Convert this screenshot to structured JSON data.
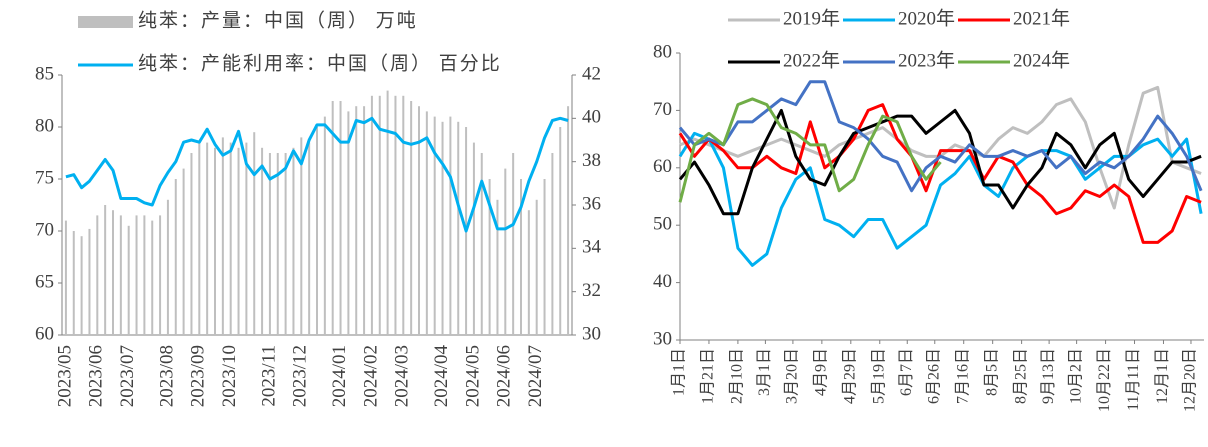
{
  "chart_data": [
    {
      "type": "combo",
      "categories": [
        "2023/05",
        null,
        null,
        null,
        "2023/06",
        null,
        null,
        null,
        "2023/07",
        null,
        null,
        null,
        null,
        "2023/08",
        null,
        null,
        null,
        "2023/09",
        null,
        null,
        null,
        "2023/10",
        null,
        null,
        null,
        null,
        "2023/11",
        null,
        null,
        null,
        "2023/12",
        null,
        null,
        null,
        null,
        "2024/01",
        null,
        null,
        null,
        "2024/02",
        null,
        null,
        null,
        "2024/03",
        null,
        null,
        null,
        null,
        "2024/04",
        null,
        null,
        null,
        "2024/05",
        null,
        null,
        null,
        "2024/06",
        null,
        null,
        null,
        "2024/07",
        null,
        null,
        null,
        null
      ],
      "series": [
        {
          "name": "纯苯：产量：中国（周） 万吨",
          "color": "#bfbfbf",
          "type": "bar",
          "values": [
            71,
            70,
            69.5,
            70.2,
            71.5,
            72.5,
            72,
            71.5,
            70.5,
            71.5,
            71.5,
            71,
            71.5,
            73,
            75,
            76,
            77.5,
            78.5,
            78.5,
            78,
            79,
            78.5,
            78,
            78.5,
            79.5,
            78,
            77.5,
            77.5,
            77.5,
            78,
            79,
            78.5,
            80,
            81,
            82.5,
            82.5,
            81.5,
            82,
            82,
            83,
            83,
            83.5,
            83,
            83,
            82.5,
            82,
            81.5,
            81,
            80.5,
            81,
            80.5,
            80,
            78.5,
            77.5,
            75,
            73,
            76,
            77.5,
            75,
            72,
            73,
            75,
            77.5,
            80,
            82
          ]
        },
        {
          "name": "纯苯：产能利用率：中国（周） 百分比",
          "color": "#00b0f0",
          "type": "line",
          "axis": "y2",
          "values": [
            37.3,
            37.4,
            36.8,
            37.1,
            37.6,
            38.1,
            37.6,
            36.3,
            36.3,
            36.3,
            36.1,
            36.0,
            36.9,
            37.5,
            38.0,
            38.9,
            39.0,
            38.9,
            39.5,
            38.8,
            38.3,
            38.5,
            39.4,
            37.9,
            37.4,
            37.8,
            37.2,
            37.4,
            37.7,
            38.5,
            37.9,
            39.0,
            39.7,
            39.7,
            39.3,
            38.9,
            38.9,
            39.9,
            39.8,
            40.0,
            39.5,
            39.4,
            39.3,
            38.9,
            38.8,
            38.9,
            39.1,
            38.4,
            37.9,
            37.3,
            36.0,
            34.8,
            35.9,
            37.1,
            36.0,
            34.9,
            34.9,
            35.1,
            35.9,
            37.1,
            38.0,
            39.1,
            39.9,
            40.0,
            39.9
          ]
        }
      ],
      "ylim": [
        60,
        85
      ],
      "yticks": [
        60,
        65,
        70,
        75,
        80,
        85
      ],
      "y2lim": [
        30,
        42
      ],
      "y2ticks": [
        30,
        32,
        34,
        36,
        38,
        40,
        42
      ]
    },
    {
      "type": "line",
      "x": [
        0,
        10,
        20,
        30,
        40,
        50,
        60,
        70,
        80,
        90,
        100,
        110,
        120,
        130,
        140,
        150,
        160,
        170,
        180,
        190,
        200,
        210,
        220,
        230,
        240,
        250,
        260,
        270,
        280,
        290,
        300,
        310,
        320,
        330,
        340,
        350,
        360
      ],
      "xlim": [
        0,
        362
      ],
      "xticks": [
        {
          "value": 0,
          "label": "1月1日"
        },
        {
          "value": 20,
          "label": "1月21日"
        },
        {
          "value": 40,
          "label": "2月10日"
        },
        {
          "value": 59,
          "label": "3月1日"
        },
        {
          "value": 78,
          "label": "3月20日"
        },
        {
          "value": 98,
          "label": "4月9日"
        },
        {
          "value": 118,
          "label": "4月29日"
        },
        {
          "value": 138,
          "label": "5月19日"
        },
        {
          "value": 157,
          "label": "6月7日"
        },
        {
          "value": 176,
          "label": "6月26日"
        },
        {
          "value": 196,
          "label": "7月16日"
        },
        {
          "value": 216,
          "label": "8月5日"
        },
        {
          "value": 236,
          "label": "8月25日"
        },
        {
          "value": 255,
          "label": "9月13日"
        },
        {
          "value": 274,
          "label": "10月2日"
        },
        {
          "value": 294,
          "label": "10月22日"
        },
        {
          "value": 314,
          "label": "11月11日"
        },
        {
          "value": 334,
          "label": "12月1日"
        },
        {
          "value": 353,
          "label": "12月20日"
        }
      ],
      "ylim": [
        30,
        80
      ],
      "yticks": [
        30,
        40,
        50,
        60,
        70,
        80
      ],
      "series": [
        {
          "name": "2019年",
          "color": "#bfbfbf",
          "values": [
            64,
            65,
            64,
            63,
            62,
            63,
            64,
            65,
            64,
            63,
            62,
            64,
            65,
            66,
            67,
            65,
            63,
            62,
            62,
            64,
            63,
            62,
            65,
            67,
            66,
            68,
            71,
            72,
            68,
            60,
            53,
            64,
            73,
            74,
            61,
            60,
            59
          ]
        },
        {
          "name": "2020年",
          "color": "#00b0f0",
          "values": [
            62,
            66,
            65,
            60,
            46,
            43,
            45,
            53,
            58,
            60,
            51,
            50,
            48,
            51,
            51,
            46,
            48,
            50,
            57,
            59,
            62,
            57,
            55,
            60,
            62,
            63,
            63,
            62,
            58,
            60,
            62,
            62,
            64,
            65,
            62,
            65,
            52
          ]
        },
        {
          "name": "2021年",
          "color": "#ff0000",
          "values": [
            66,
            62,
            65,
            63,
            60,
            60,
            62,
            60,
            59,
            68,
            60,
            62,
            65,
            70,
            71,
            65,
            62,
            56,
            63,
            63,
            63,
            58,
            62,
            61,
            57,
            55,
            52,
            53,
            56,
            55,
            57,
            55,
            47,
            47,
            49,
            55,
            54
          ]
        },
        {
          "name": "2022年",
          "color": "#000000",
          "values": [
            58,
            61,
            57,
            52,
            52,
            60,
            65,
            70,
            62,
            58,
            57,
            62,
            66,
            67,
            68,
            69,
            69,
            66,
            68,
            70,
            66,
            57,
            57,
            53,
            57,
            60,
            66,
            64,
            60,
            64,
            66,
            58,
            55,
            58,
            61,
            61,
            62
          ]
        },
        {
          "name": "2023年",
          "color": "#4472c4",
          "values": [
            67,
            64,
            65,
            64,
            68,
            68,
            70,
            72,
            71,
            75,
            75,
            68,
            67,
            65,
            62,
            61,
            56,
            60,
            62,
            61,
            64,
            62,
            62,
            63,
            62,
            63,
            60,
            62,
            59,
            61,
            60,
            62,
            65,
            69,
            66,
            62,
            56
          ]
        },
        {
          "name": "2024年",
          "color": "#70ad47",
          "values": [
            54,
            64,
            66,
            64,
            71,
            72,
            71,
            67,
            66,
            64,
            64,
            56,
            58,
            64,
            69,
            68,
            62,
            58,
            61,
            null,
            null,
            null,
            null,
            null,
            null,
            null,
            null,
            null,
            null,
            null,
            null,
            null,
            null,
            null,
            null,
            null,
            null
          ]
        }
      ]
    }
  ]
}
